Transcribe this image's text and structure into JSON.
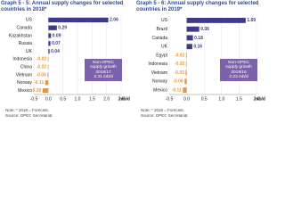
{
  "chart_data": [
    {
      "type": "bar",
      "orientation": "horizontal",
      "title": "Graph 5 - 5: Annual supply changes for selected countries in 2018*",
      "categories": [
        "US",
        "Canada",
        "Kazakhstan",
        "Russia",
        "UK",
        "Indonesia",
        "China",
        "Vietnam",
        "Norway",
        "Mexico"
      ],
      "values": [
        2.06,
        0.29,
        0.09,
        0.07,
        0.04,
        -0.02,
        -0.02,
        -0.03,
        -0.11,
        -0.2
      ],
      "value_labels": [
        "2.06",
        "0.29",
        "0.09",
        "0.07",
        "0.04",
        "-0.02",
        "-0.02",
        "-0.03",
        "-0.11",
        "-0.20"
      ],
      "color": "#3d3a8c",
      "negative_color": "#e9963a",
      "xlim": [
        -0.5,
        2.5
      ],
      "xticks": [
        -0.5,
        {
          "value": 0,
          "label": "0.0"
        },
        0.5,
        {
          "value": 1,
          "label": "1.0"
        },
        1.5,
        {
          "value": 2,
          "label": "2.0"
        },
        2.5
      ],
      "x_label": "mb/d",
      "annotation": [
        "Non-OPEC",
        "supply growth",
        "2018/17",
        "2.31 mb/d"
      ],
      "note": "Note: * 2018 = Forecast.",
      "source": "Source: OPEC Secretariat."
    },
    {
      "type": "bar",
      "orientation": "horizontal",
      "title": "Graph 5 - 6: Annual supply changes for selected countries in 2019*",
      "categories": [
        "US",
        "Brazil",
        "Canada",
        "UK",
        "Egypt",
        "Indonesia",
        "Vietnam",
        "Norway",
        "Mexico"
      ],
      "values": [
        1.69,
        0.36,
        0.18,
        0.16,
        -0.02,
        -0.02,
        -0.03,
        -0.06,
        -0.11
      ],
      "value_labels": [
        "1.69",
        "0.36",
        "0.18",
        "0.16",
        "-0.02",
        "-0.02",
        "-0.03",
        "-0.06",
        "-0.11"
      ],
      "color": "#3d3a8c",
      "negative_color": "#e9963a",
      "xlim": [
        -0.5,
        2.0
      ],
      "xticks": [
        -0.5,
        {
          "value": 0,
          "label": "0.0"
        },
        0.5,
        {
          "value": 1,
          "label": "1.0"
        },
        1.5,
        {
          "value": 2,
          "label": "2.0"
        }
      ],
      "x_label": "mb/d",
      "annotation": [
        "Non-OPEC",
        "supply growth",
        "2019/18",
        "2.23 mb/d"
      ],
      "note": "Note: * 2019 = Forecast.",
      "source": "Source: OPEC Secretariat."
    }
  ]
}
